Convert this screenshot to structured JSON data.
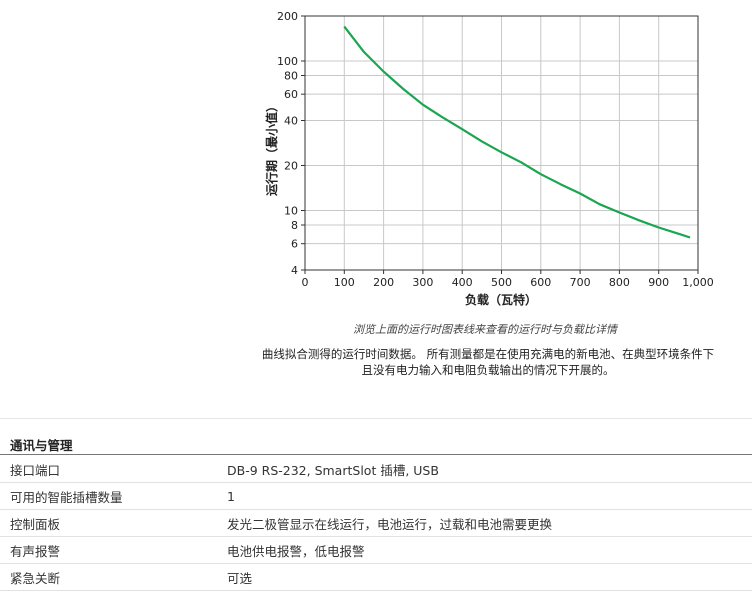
{
  "chart_data": {
    "type": "line",
    "ylabel": "运行期（最小值）",
    "xlabel": "负载（瓦特）",
    "xlim": [
      0,
      1000
    ],
    "ylim": [
      4,
      200
    ],
    "yscale": "log",
    "grid": true,
    "x_ticks": [
      0,
      100,
      200,
      300,
      400,
      500,
      600,
      700,
      800,
      900,
      1000
    ],
    "x_tick_labels": [
      "0",
      "100",
      "200",
      "300",
      "400",
      "500",
      "600",
      "700",
      "800",
      "900",
      "1,000"
    ],
    "y_ticks": [
      4,
      6,
      8,
      10,
      20,
      40,
      60,
      80,
      100,
      200
    ],
    "y_tick_labels": [
      "4",
      "6",
      "8",
      "10",
      "20",
      "40",
      "60",
      "80",
      "100",
      "200"
    ],
    "series": [
      {
        "color": "#1aa551",
        "x": [
          100,
          150,
          200,
          250,
          300,
          350,
          400,
          450,
          500,
          550,
          600,
          650,
          700,
          750,
          800,
          850,
          900,
          950,
          980
        ],
        "y": [
          170,
          115,
          85,
          65,
          51,
          42,
          35,
          29,
          24.5,
          21,
          17.5,
          15,
          13,
          11,
          9.7,
          8.6,
          7.7,
          7,
          6.6
        ]
      }
    ]
  },
  "caption": "浏览上面的运行时图表线来查看的运行时与负载比详情",
  "note": "曲线拟合测得的运行时间数据。 所有测量都是在使用充满电的新电池、在典型环境条件下且没有电力输入和电阻负载输出的情况下开展的。",
  "section": {
    "title": "通讯与管理",
    "rows": [
      {
        "key": "接口端口",
        "value": "DB-9 RS-232, SmartSlot 插槽, USB"
      },
      {
        "key": "可用的智能插槽数量",
        "value": "1"
      },
      {
        "key": "控制面板",
        "value": "发光二极管显示在线运行，电池运行，过载和电池需要更换"
      },
      {
        "key": "有声报警",
        "value": "电池供电报警，低电报警"
      },
      {
        "key": "紧急关断",
        "value": "可选"
      }
    ]
  }
}
